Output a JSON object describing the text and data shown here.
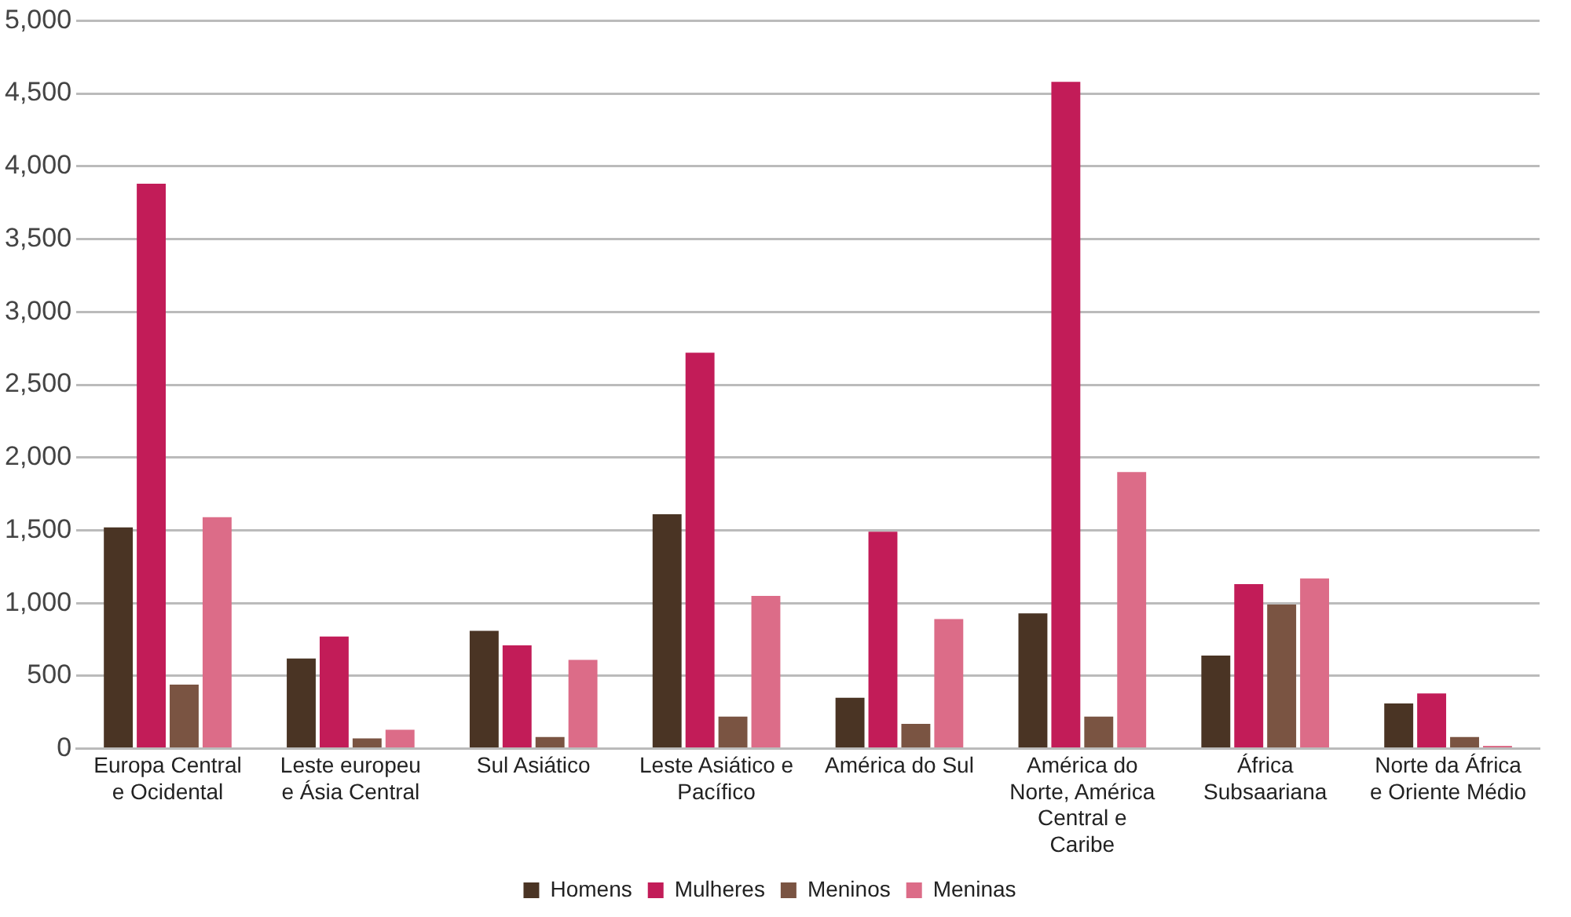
{
  "chart_data": {
    "type": "bar",
    "categories": [
      "Europa Central e Ocidental",
      "Leste europeu e Ásia Central",
      "Sul Asiático",
      "Leste Asiático e Pacífico",
      "América do Sul",
      "América do Norte, América Central e Caribe",
      "África Subsaariana",
      "Norte da África e Oriente Médio"
    ],
    "series": [
      {
        "name": "Homens",
        "color": "#4a3424",
        "values": [
          1520,
          620,
          810,
          1610,
          350,
          930,
          640,
          310
        ]
      },
      {
        "name": "Mulheres",
        "color": "#c21c58",
        "values": [
          3880,
          770,
          710,
          2720,
          1490,
          4580,
          1130,
          380
        ]
      },
      {
        "name": "Meninos",
        "color": "#7a5442",
        "values": [
          440,
          70,
          80,
          220,
          170,
          220,
          990,
          80
        ]
      },
      {
        "name": "Meninas",
        "color": "#dc6c88",
        "values": [
          1590,
          130,
          610,
          1050,
          890,
          1900,
          1170,
          20
        ]
      }
    ],
    "ylim": [
      0,
      5000
    ],
    "yticks": [
      {
        "value": 0,
        "label": "0"
      },
      {
        "value": 500,
        "label": "500"
      },
      {
        "value": 1000,
        "label": "1,000"
      },
      {
        "value": 1500,
        "label": "1,500"
      },
      {
        "value": 2000,
        "label": "2,000"
      },
      {
        "value": 2500,
        "label": "2,500"
      },
      {
        "value": 3000,
        "label": "3,000"
      },
      {
        "value": 3500,
        "label": "3,500"
      },
      {
        "value": 4000,
        "label": "4,000"
      },
      {
        "value": 4500,
        "label": "4,500"
      },
      {
        "value": 5000,
        "label": "5,000"
      }
    ],
    "grid": "y",
    "legend": "bottom"
  }
}
